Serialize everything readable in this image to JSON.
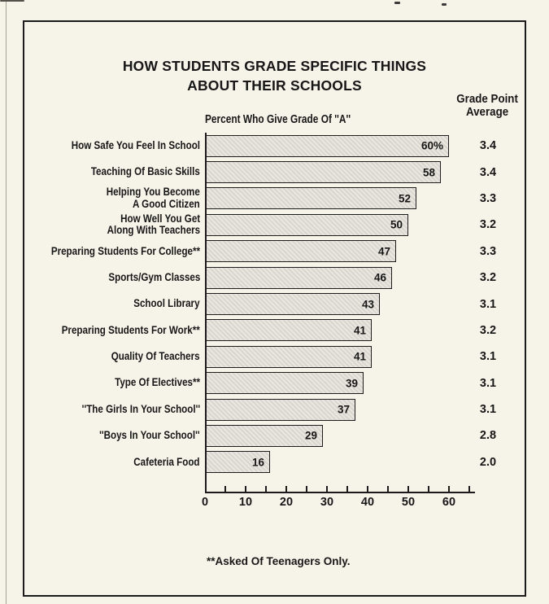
{
  "title": {
    "line1": "HOW STUDENTS GRADE SPECIFIC THINGS",
    "line2": "ABOUT THEIR SCHOOLS"
  },
  "columns": {
    "percent_header": "Percent Who Give Grade Of ''A''",
    "gpa_header_line1": "Grade Point",
    "gpa_header_line2": "Average"
  },
  "footnote": "**Asked Of Teenagers Only.",
  "colors": {
    "page_background": "#f6f3e9",
    "ink": "#1b1b1b",
    "bar_fill_base": "#d9d6cf",
    "bar_hatch_line": "#eae7e0"
  },
  "chart_data": {
    "type": "bar",
    "orientation": "horizontal",
    "title": "HOW STUDENTS GRADE SPECIFIC THINGS ABOUT THEIR SCHOOLS",
    "xlabel": "Percent Who Give Grade Of ''A''",
    "xlim": [
      0,
      65
    ],
    "x_ticks": [
      0,
      10,
      20,
      30,
      40,
      50,
      60
    ],
    "minor_tick_step": 5,
    "grid": false,
    "legend": "none",
    "categories": [
      "How Safe You Feel In School",
      "Teaching Of Basic Skills",
      "Helping You Become\nA Good Citizen",
      "How Well You Get\nAlong With Teachers",
      "Preparing Students For College**",
      "Sports/Gym Classes",
      "School Library",
      "Preparing Students For Work**",
      "Quality Of Teachers",
      "Type Of Electives**",
      "''The Girls In Your School''",
      "''Boys In Your School''",
      "Cafeteria Food"
    ],
    "series": [
      {
        "name": "Percent Who Give Grade Of ''A''",
        "values": [
          60,
          58,
          52,
          50,
          47,
          46,
          43,
          41,
          41,
          39,
          37,
          29,
          16
        ]
      },
      {
        "name": "Grade Point Average",
        "values": [
          3.4,
          3.4,
          3.3,
          3.2,
          3.3,
          3.2,
          3.1,
          3.2,
          3.1,
          3.1,
          3.1,
          2.8,
          2.0
        ]
      }
    ],
    "bar_value_labels": [
      "60%",
      "58",
      "52",
      "50",
      "47",
      "46",
      "43",
      "41",
      "41",
      "39",
      "37",
      "29",
      "16"
    ],
    "gpa_labels": [
      "3.4",
      "3.4",
      "3.3",
      "3.2",
      "3.3",
      "3.2",
      "3.1",
      "3.2",
      "3.1",
      "3.1",
      "3.1",
      "2.8",
      "2.0"
    ]
  }
}
